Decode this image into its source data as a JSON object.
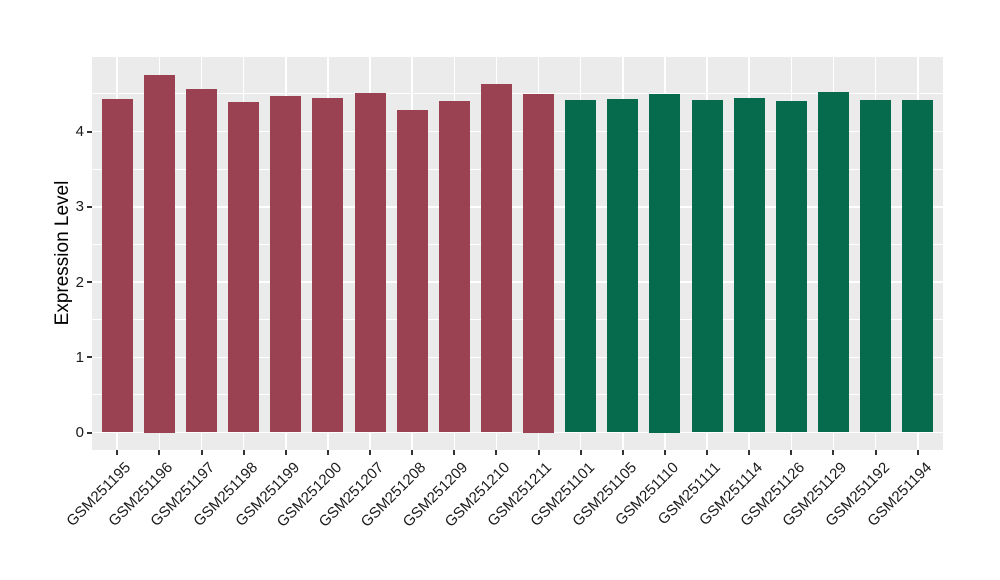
{
  "chart_data": {
    "type": "bar",
    "title": "",
    "xlabel": "",
    "ylabel": "Expression Level",
    "yticks": [
      0,
      1,
      2,
      3,
      4
    ],
    "yminor": [
      0.5,
      1.5,
      2.5,
      3.5,
      4.5
    ],
    "ylim": [
      -0.24,
      4.99
    ],
    "grid": "on",
    "legend_position": "none",
    "panel_background": "#EBEBEB",
    "gridline_color": "#FFFFFF",
    "tick_color": "#333333",
    "series": [
      {
        "name": "maroon-bars",
        "color": "#9A4252",
        "categories": [
          "GSM251195",
          "GSM251196",
          "GSM251197",
          "GSM251198",
          "GSM251199",
          "GSM251200",
          "GSM251207",
          "GSM251208",
          "GSM251209",
          "GSM251210",
          "GSM251211"
        ],
        "values": [
          4.43,
          4.75,
          4.57,
          4.39,
          4.47,
          4.44,
          4.51,
          4.28,
          4.41,
          4.63,
          4.5
        ]
      },
      {
        "name": "green-bars",
        "color": "#066A4C",
        "categories": [
          "GSM251101",
          "GSM251105",
          "GSM251110",
          "GSM251111",
          "GSM251114",
          "GSM251126",
          "GSM251129",
          "GSM251192",
          "GSM251194"
        ],
        "values": [
          4.42,
          4.43,
          4.5,
          4.42,
          4.45,
          4.4,
          4.53,
          4.42,
          4.42
        ]
      }
    ]
  }
}
